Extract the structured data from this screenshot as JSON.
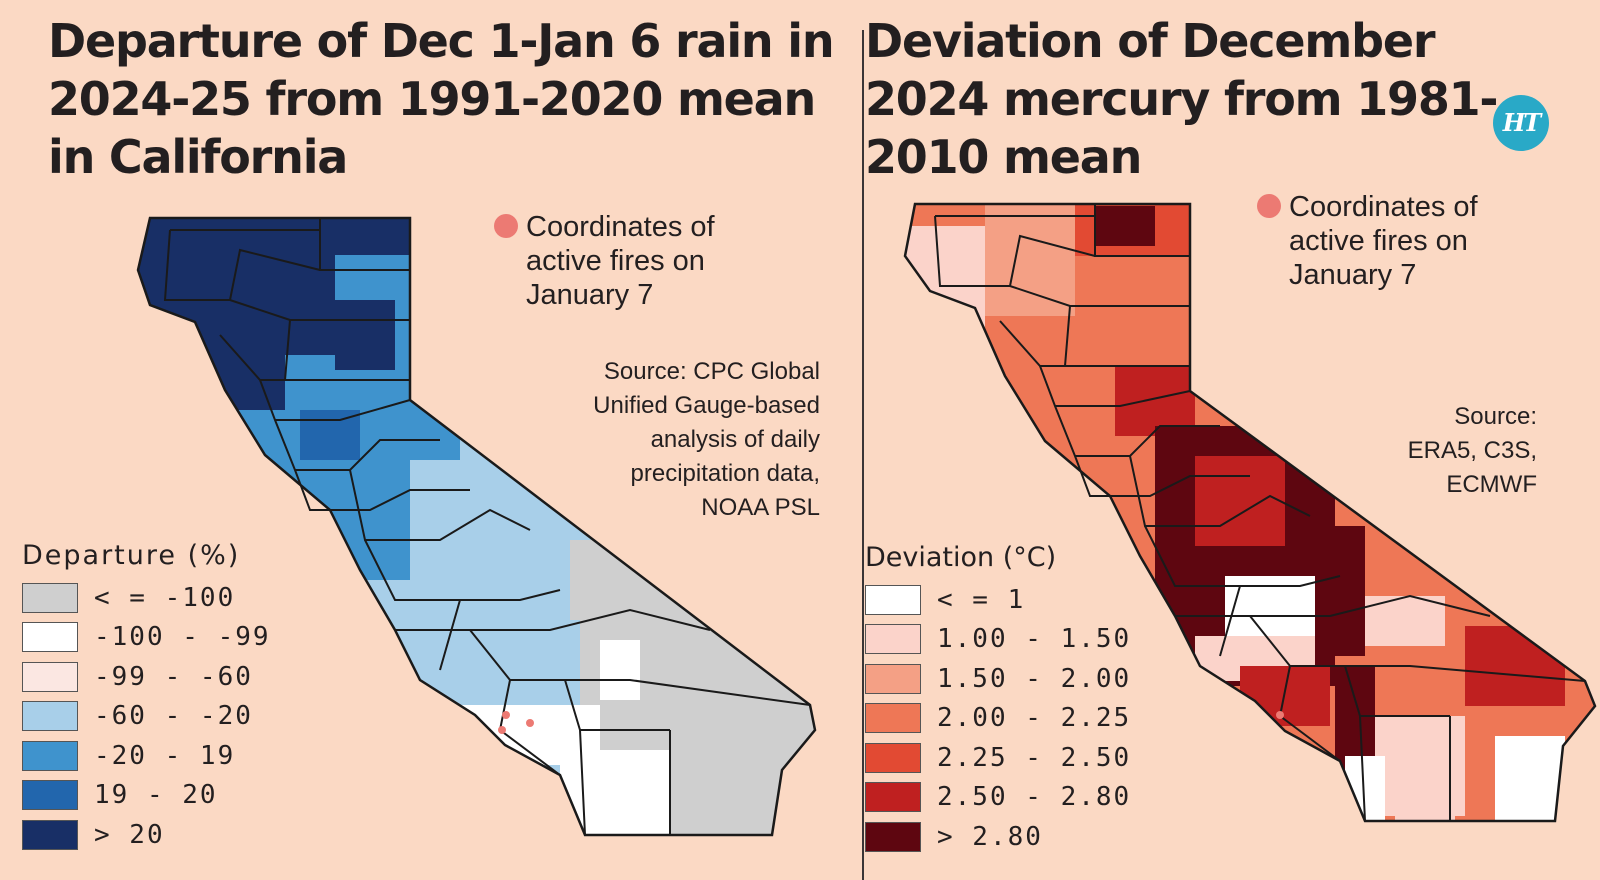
{
  "rain_map": {
    "title": "Departure of Dec 1-Jan 6 rain in 2024-25 from 1991-2020 mean in California",
    "fires_note": "Coordinates of active fires on January 7",
    "source_lines": [
      "Source: CPC Global",
      "Unified Gauge-based",
      "analysis of daily",
      "precipitation data,",
      "NOAA PSL"
    ],
    "legend": {
      "title": "Departure (%)",
      "items": [
        {
          "label": "< = -100",
          "color": "#cfcfcf"
        },
        {
          "label": "-100 - -99",
          "color": "#ffffff"
        },
        {
          "label": "-99 - -60",
          "color": "#fbe7e2"
        },
        {
          "label": "-60 - -20",
          "color": "#a8cfe9"
        },
        {
          "label": "-20 - 19",
          "color": "#3f93cd"
        },
        {
          "label": "19 - 20",
          "color": "#2266ad"
        },
        {
          "label": "> 20",
          "color": "#182f66"
        }
      ]
    }
  },
  "temp_map": {
    "title": "Deviation of December 2024 mercury from 1981-2010 mean",
    "fires_note": "Coordinates of active fires on January 7",
    "source_lines": [
      "Source:",
      "ERA5, C3S,",
      "ECMWF"
    ],
    "legend": {
      "title": "Deviation (°C)",
      "items": [
        {
          "label": "< = 1",
          "color": "#ffffff"
        },
        {
          "label": "1.00 - 1.50",
          "color": "#fbd3ca"
        },
        {
          "label": "1.50 - 2.00",
          "color": "#f4a085"
        },
        {
          "label": "2.00 - 2.25",
          "color": "#ee7756"
        },
        {
          "label": "2.25 - 2.50",
          "color": "#e24a33"
        },
        {
          "label": "2.50 - 2.80",
          "color": "#bf2020"
        },
        {
          "label": "> 2.80",
          "color": "#5e0610"
        }
      ]
    }
  },
  "logo_text": "HT"
}
